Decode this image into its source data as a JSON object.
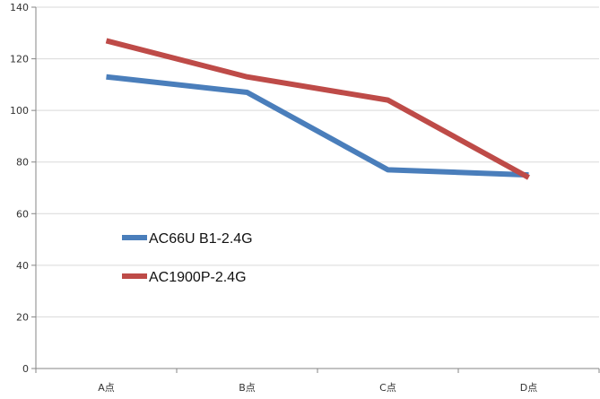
{
  "chart_data": {
    "type": "line",
    "title": "",
    "xlabel": "",
    "ylabel": "",
    "categories": [
      "A点",
      "B点",
      "C点",
      "D点"
    ],
    "ylim": [
      0,
      140
    ],
    "yticks": [
      0,
      20,
      40,
      60,
      80,
      100,
      120,
      140
    ],
    "grid": true,
    "legend_placement": "left-middle-inside",
    "series": [
      {
        "name": "AC66U B1-2.4G",
        "values": [
          113,
          107,
          77,
          75
        ],
        "color": "#4a7ebb"
      },
      {
        "name": "AC1900P-2.4G",
        "values": [
          127,
          113,
          104,
          74
        ],
        "color": "#be4b48"
      }
    ]
  }
}
